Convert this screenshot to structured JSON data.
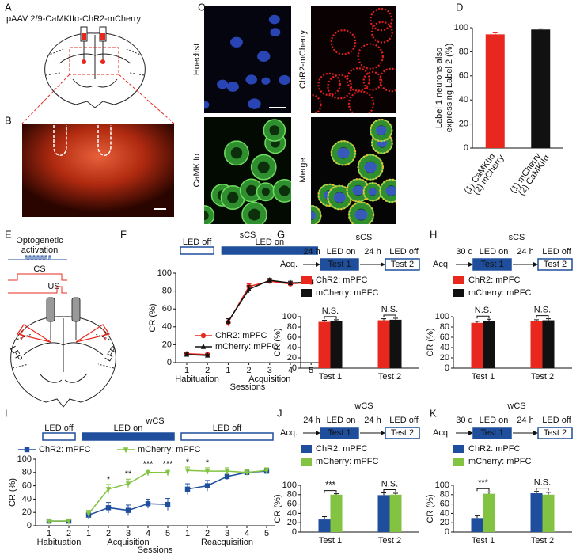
{
  "panel_labels": [
    "A",
    "B",
    "C",
    "D",
    "E",
    "F",
    "G",
    "H",
    "I",
    "J",
    "K"
  ],
  "panel_a": {
    "construct": "pAAV 2/9-CaMKIIα-ChR2-mCherry"
  },
  "panel_c": {
    "image_labels": [
      "Hoechst",
      "ChR2-mCherry",
      "CaMKIIα",
      "Merge"
    ]
  },
  "panel_e": {
    "stimulus": [
      "Optogenetic",
      "activation"
    ],
    "cs": "CS",
    "us": "US",
    "recording": [
      "LFP",
      "LFP"
    ]
  },
  "chart_data": [
    {
      "type": "bar",
      "ylabel": [
        "Label 1 neurons also",
        "expressing Label 2 (%)"
      ],
      "categories": [
        [
          "(1) CaMKIIα",
          "(2) mCherry"
        ],
        [
          "(1) mCherry",
          "(2) CaMKIIα"
        ]
      ],
      "values": [
        94.5,
        98.5
      ],
      "errors": [
        1.2,
        0.6
      ],
      "colors": [
        "#e8281e",
        "#111111"
      ],
      "ylim": [
        0,
        100
      ],
      "yticks": [
        0,
        20,
        40,
        60,
        80,
        100
      ]
    },
    {
      "type": "line",
      "title": "sCS",
      "xlabel": "Sessions",
      "ylabel": "CR (%)",
      "condition_color": "#1f4e9c",
      "legend": "lower right",
      "category_groups": [
        {
          "label": "Habituation",
          "categories": [
            "1",
            "2"
          ],
          "led": "LED off",
          "led_style": "outline"
        },
        {
          "label": "Acquisition",
          "categories": [
            "1",
            "2",
            "3",
            "4",
            "5"
          ],
          "led": "LED on",
          "led_style": "filled"
        }
      ],
      "series": [
        {
          "name": "ChR2: mPFC",
          "color": "#e8281e",
          "marker": "circle",
          "values": [
            10,
            9,
            45,
            85,
            91,
            88,
            90
          ],
          "errors": [
            1.5,
            1.5,
            4,
            3,
            2,
            2,
            2
          ]
        },
        {
          "name": "mCherry: mPFC",
          "color": "#111111",
          "marker": "triangle",
          "values": [
            9,
            8,
            46,
            82,
            92,
            89,
            90
          ],
          "errors": [
            1.5,
            1.5,
            3,
            4,
            2,
            2,
            2
          ]
        }
      ],
      "ylim": [
        0,
        100
      ],
      "yticks": [
        0,
        20,
        40,
        60,
        80,
        100
      ]
    },
    {
      "type": "grouped_bar",
      "title": "sCS",
      "ylabel": "CR (%)",
      "protocol_color": "#1f4e9c",
      "protocol": {
        "start": "Acq.",
        "intervals": [
          "24 h",
          "24 h"
        ],
        "conditions": [
          "LED on",
          "LED off"
        ],
        "tests": [
          "Test 1",
          "Test 2"
        ]
      },
      "categories": [
        "Test 1",
        "Test 2"
      ],
      "series": [
        {
          "name": "ChR2: mPFC",
          "color": "#e8281e",
          "values": [
            90,
            93
          ],
          "errors": [
            3,
            3
          ]
        },
        {
          "name": "mCherry: mPFC",
          "color": "#111111",
          "values": [
            92,
            94
          ],
          "errors": [
            2,
            3
          ]
        }
      ],
      "annotations": [
        "N.S.",
        "N.S."
      ],
      "ylim": [
        0,
        100
      ],
      "yticks": [
        0,
        20,
        40,
        60,
        80,
        100
      ]
    },
    {
      "type": "grouped_bar",
      "title": "sCS",
      "ylabel": "CR (%)",
      "protocol_color": "#1f4e9c",
      "protocol": {
        "start": "Acq.",
        "intervals": [
          "30 d",
          "24 h"
        ],
        "conditions": [
          "LED on",
          "LED off"
        ],
        "tests": [
          "Test 1",
          "Test 2"
        ]
      },
      "categories": [
        "Test 1",
        "Test 2"
      ],
      "series": [
        {
          "name": "ChR2: mPFC",
          "color": "#e8281e",
          "values": [
            88,
            92
          ],
          "errors": [
            3,
            2
          ]
        },
        {
          "name": "mCherry: mPFC",
          "color": "#111111",
          "values": [
            92,
            93
          ],
          "errors": [
            3,
            3
          ]
        }
      ],
      "annotations": [
        "N.S.",
        "N.S."
      ],
      "ylim": [
        0,
        100
      ],
      "yticks": [
        0,
        20,
        40,
        60,
        80,
        100
      ]
    },
    {
      "type": "line",
      "title": "wCS",
      "xlabel": "Sessions",
      "ylabel": "CR (%)",
      "condition_color": "#1f4e9c",
      "legend": "top",
      "category_groups": [
        {
          "label": "Habituation",
          "categories": [
            "1",
            "2"
          ],
          "led": "LED off",
          "led_style": "outline"
        },
        {
          "label": "Acquisition",
          "categories": [
            "1",
            "2",
            "3",
            "4",
            "5"
          ],
          "led": "LED on",
          "led_style": "filled"
        },
        {
          "label": "Reacquisition",
          "categories": [
            "1",
            "2",
            "3",
            "4",
            "5"
          ],
          "led": "LED off",
          "led_style": "outline"
        }
      ],
      "series": [
        {
          "name": "ChR2: mPFC",
          "color": "#1f4e9c",
          "marker": "square",
          "values": [
            7,
            7,
            16,
            27,
            23,
            33,
            32,
            55,
            60,
            74,
            80,
            82
          ],
          "errors": [
            2,
            2,
            6,
            8,
            8,
            7,
            9,
            8,
            8,
            5,
            4,
            4
          ]
        },
        {
          "name": "mCherry: mPFC",
          "color": "#82c341",
          "marker": "down-triangle",
          "values": [
            7,
            7,
            18,
            55,
            63,
            80,
            80,
            83,
            82,
            82,
            80,
            83
          ],
          "errors": [
            2,
            2,
            5,
            7,
            7,
            5,
            5,
            5,
            5,
            5,
            4,
            4
          ]
        }
      ],
      "annotations": [
        null,
        null,
        null,
        "*",
        "**",
        "***",
        "***",
        "*",
        "*",
        null,
        null,
        null
      ],
      "ylim": [
        0,
        100
      ],
      "yticks": [
        0,
        20,
        40,
        60,
        80,
        100
      ]
    },
    {
      "type": "grouped_bar",
      "title": "wCS",
      "ylabel": "CR (%)",
      "protocol_color": "#1f4e9c",
      "protocol": {
        "start": "Acq.",
        "intervals": [
          "24 h",
          "24 h"
        ],
        "conditions": [
          "LED on",
          "LED off"
        ],
        "tests": [
          "Test 1",
          "Test 2"
        ]
      },
      "categories": [
        "Test 1",
        "Test 2"
      ],
      "series": [
        {
          "name": "ChR2: mPFC",
          "color": "#1f4e9c",
          "values": [
            27,
            79
          ],
          "errors": [
            6,
            5
          ]
        },
        {
          "name": "mCherry: mPFC",
          "color": "#82c341",
          "values": [
            80,
            80
          ],
          "errors": [
            2,
            3
          ]
        }
      ],
      "annotations": [
        "***",
        "N.S."
      ],
      "ylim": [
        0,
        100
      ],
      "yticks": [
        0,
        20,
        40,
        60,
        80,
        100
      ]
    },
    {
      "type": "grouped_bar",
      "title": "wCS",
      "ylabel": "CR (%)",
      "protocol_color": "#1f4e9c",
      "protocol": {
        "start": "Acq.",
        "intervals": [
          "30 d",
          "24 h"
        ],
        "conditions": [
          "LED on",
          "LED off"
        ],
        "tests": [
          "Test 1",
          "Test 2"
        ]
      },
      "categories": [
        "Test 1",
        "Test 2"
      ],
      "series": [
        {
          "name": "ChR2: mPFC",
          "color": "#1f4e9c",
          "values": [
            30,
            83
          ],
          "errors": [
            5,
            4
          ]
        },
        {
          "name": "mCherry: mPFC",
          "color": "#82c341",
          "values": [
            82,
            80
          ],
          "errors": [
            4,
            5
          ]
        }
      ],
      "annotations": [
        "***",
        "N.S."
      ],
      "ylim": [
        0,
        100
      ],
      "yticks": [
        0,
        20,
        40,
        60,
        80,
        100
      ]
    }
  ]
}
